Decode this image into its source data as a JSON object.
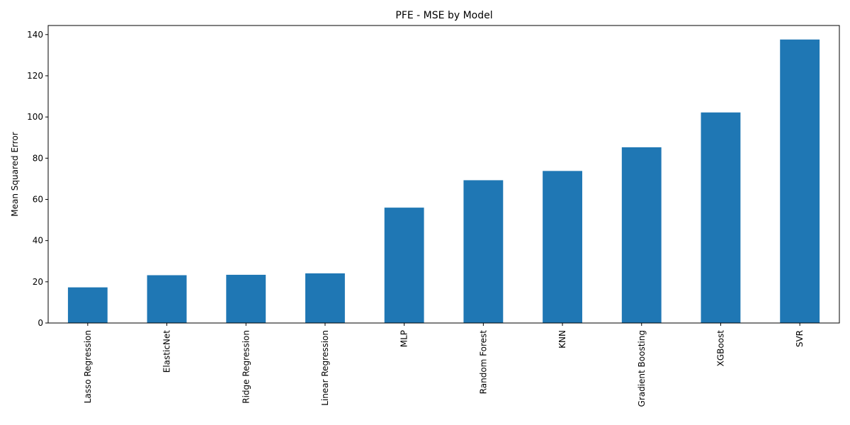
{
  "chart_data": {
    "type": "bar",
    "title": "PFE - MSE by Model",
    "xlabel": "",
    "ylabel": "Mean Squared Error",
    "categories": [
      "Lasso Regression",
      "ElasticNet",
      "Ridge Regression",
      "Linear Regression",
      "MLP",
      "Random Forest",
      "KNN",
      "Gradient Boosting",
      "XGBoost",
      "SVR"
    ],
    "values": [
      17.3,
      23.2,
      23.4,
      24.1,
      56.0,
      69.3,
      73.8,
      85.3,
      102.2,
      137.6
    ],
    "ylim": [
      0,
      144.4
    ],
    "yticks": [
      0,
      20,
      40,
      60,
      80,
      100,
      120,
      140
    ],
    "bar_color": "#1f77b4",
    "grid": false,
    "legend": "none"
  }
}
